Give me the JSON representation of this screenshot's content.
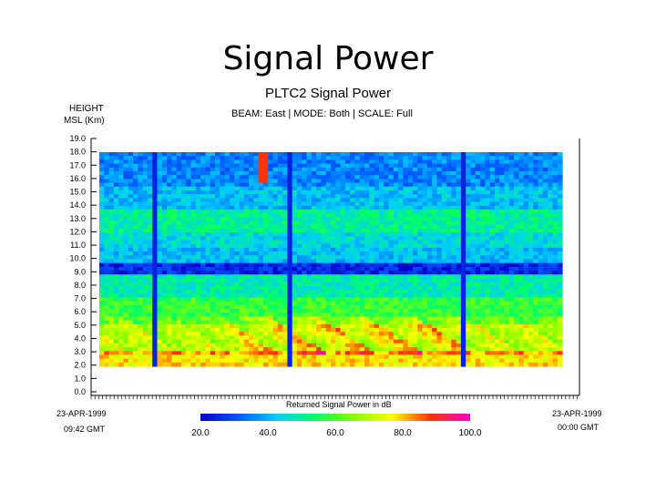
{
  "slide": {
    "title": "Signal Power"
  },
  "chart_data": {
    "type": "heatmap",
    "title": "PLTC2 Signal Power",
    "subtitle": "BEAM: East  |  MODE: Both  |  SCALE: Full",
    "ylabel_line1": "HEIGHT",
    "ylabel_line2": "MSL  (Km)",
    "ylim": [
      0,
      19
    ],
    "ytick_labels": [
      "0.0",
      "1.0",
      "2.0",
      "3.0",
      "4.0",
      "5.0",
      "6.0",
      "7.0",
      "8.0",
      "9.0",
      "10.0",
      "11.0",
      "12.0",
      "13.0",
      "14.0",
      "15.0",
      "16.0",
      "17.0",
      "18.0",
      "19.0"
    ],
    "x_start": {
      "date": "23-APR-1999",
      "time": "09:42  GMT"
    },
    "x_end": {
      "date": "23-APR-1999",
      "time": "00:00  GMT"
    },
    "colorbar": {
      "label": "Returned Signal Power in dB",
      "range": [
        20,
        100
      ],
      "tick_labels": [
        "20.0",
        "40.0",
        "60.0",
        "80.0",
        "100.0"
      ]
    }
  }
}
